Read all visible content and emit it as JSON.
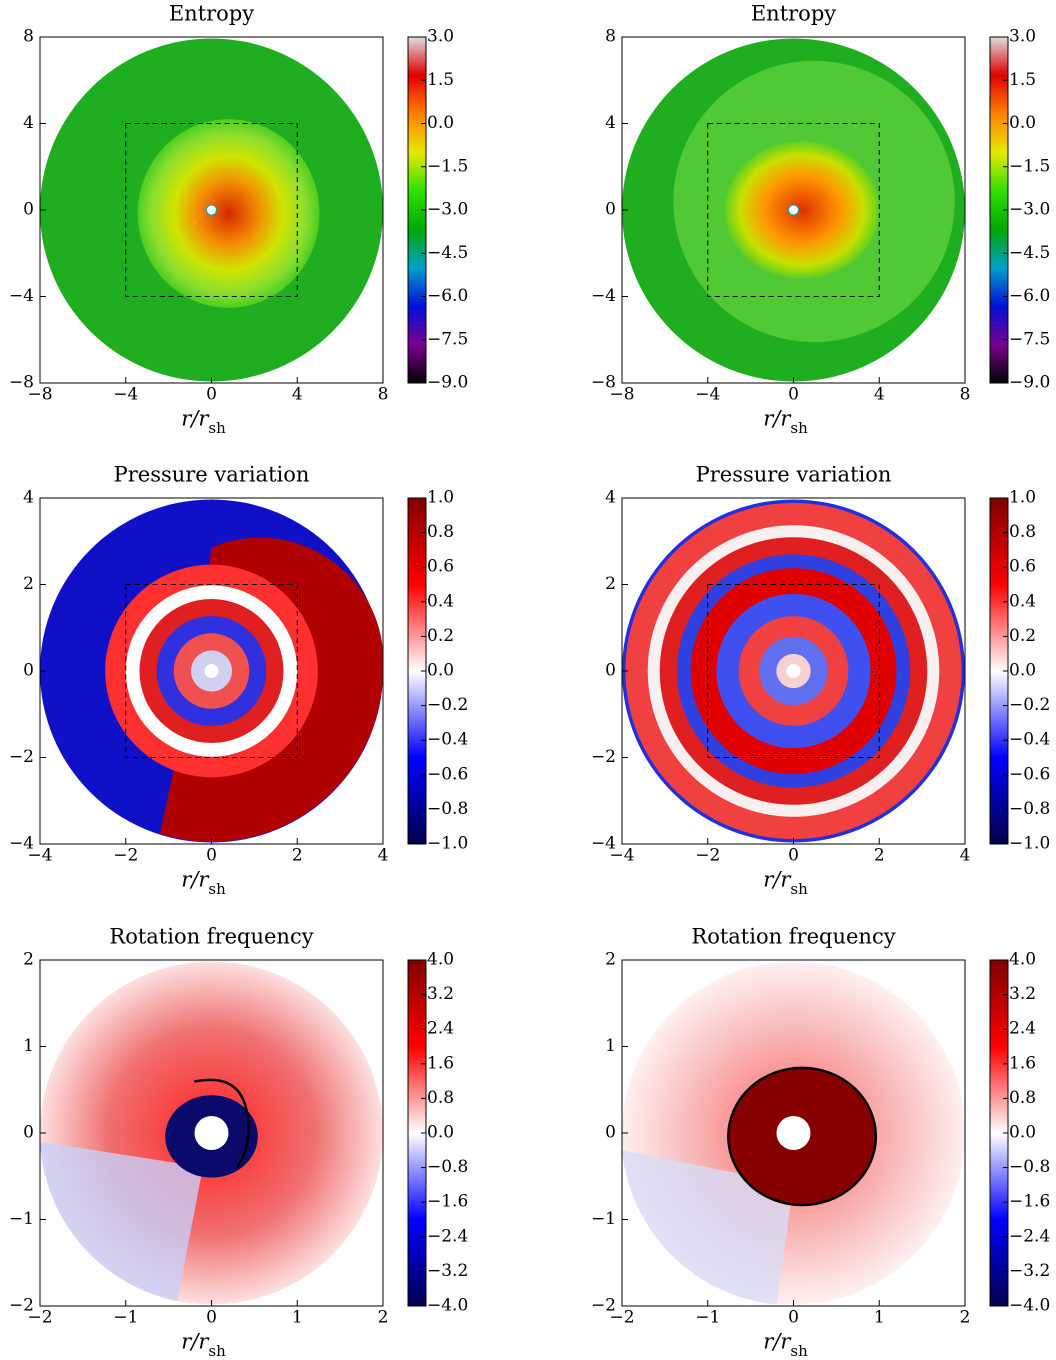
{
  "chart_data": [
    {
      "type": "image",
      "title": "Entropy",
      "xlabel": "r/r",
      "xlabel_subscript": "sh",
      "xlim": [
        -8,
        8
      ],
      "ylim": [
        -8,
        8
      ],
      "xticks": [
        {
          "value": -8,
          "label": "−8"
        },
        {
          "value": -4,
          "label": "−4"
        },
        0,
        4,
        8
      ],
      "yticks": [
        {
          "value": -8,
          "label": "−8"
        },
        {
          "value": -4,
          "label": "−4"
        },
        0,
        4,
        8
      ],
      "clim": [
        -9,
        3
      ],
      "cticks": [
        {
          "value": 3,
          "label": "3.0"
        },
        {
          "value": 1.5,
          "label": "1.5"
        },
        {
          "value": 0,
          "label": "0.0"
        },
        {
          "value": -1.5,
          "label": "−1.5"
        },
        {
          "value": -3,
          "label": "−3.0"
        },
        {
          "value": -4.5,
          "label": "−4.5"
        },
        {
          "value": -6,
          "label": "−6.0"
        },
        {
          "value": -7.5,
          "label": "−7.5"
        },
        {
          "value": -9,
          "label": "−9.0"
        }
      ],
      "colormap": [
        "#000000",
        "#7a0090",
        "#0010d8",
        "#00a0c8",
        "#00a800",
        "#30e000",
        "#e8e800",
        "#ff8000",
        "#e00000",
        "#dddddd"
      ]
    },
    {
      "type": "image",
      "title": "Entropy",
      "xlabel": "r/r",
      "xlabel_subscript": "sh",
      "xlim": [
        -8,
        8
      ],
      "ylim": [
        -8,
        8
      ],
      "xticks": [
        {
          "value": -8,
          "label": "−8"
        },
        {
          "value": -4,
          "label": "−4"
        },
        0,
        4,
        8
      ],
      "yticks": [
        {
          "value": -8,
          "label": "−8"
        },
        {
          "value": -4,
          "label": "−4"
        },
        0,
        4,
        8
      ],
      "clim": [
        -9,
        3
      ],
      "cticks": [
        {
          "value": 3,
          "label": "3.0"
        },
        {
          "value": 1.5,
          "label": "1.5"
        },
        {
          "value": 0,
          "label": "0.0"
        },
        {
          "value": -1.5,
          "label": "−1.5"
        },
        {
          "value": -3,
          "label": "−3.0"
        },
        {
          "value": -4.5,
          "label": "−4.5"
        },
        {
          "value": -6,
          "label": "−6.0"
        },
        {
          "value": -7.5,
          "label": "−7.5"
        },
        {
          "value": -9,
          "label": "−9.0"
        }
      ],
      "colormap": [
        "#000000",
        "#7a0090",
        "#0010d8",
        "#00a0c8",
        "#00a800",
        "#30e000",
        "#e8e800",
        "#ff8000",
        "#e00000",
        "#dddddd"
      ]
    },
    {
      "type": "image",
      "title": "Pressure variation",
      "xlabel": "r/r",
      "xlabel_subscript": "sh",
      "xlim": [
        -4,
        4
      ],
      "ylim": [
        -4,
        4
      ],
      "xticks": [
        {
          "value": -4,
          "label": "−4"
        },
        {
          "value": -2,
          "label": "−2"
        },
        0,
        2,
        4
      ],
      "yticks": [
        {
          "value": -4,
          "label": "−4"
        },
        {
          "value": -2,
          "label": "−2"
        },
        0,
        2,
        4
      ],
      "clim": [
        -1,
        1
      ],
      "cticks": [
        {
          "value": 1,
          "label": "1.0"
        },
        0.8,
        0.6,
        0.4,
        0.2,
        {
          "value": 0,
          "label": "0.0"
        },
        {
          "value": -0.2,
          "label": "−0.2"
        },
        {
          "value": -0.4,
          "label": "−0.4"
        },
        {
          "value": -0.6,
          "label": "−0.6"
        },
        {
          "value": -0.8,
          "label": "−0.8"
        },
        {
          "value": -1,
          "label": "−1.0"
        }
      ],
      "colormap": [
        "#00004c",
        "#0000ff",
        "#ffffff",
        "#ff0000",
        "#800000"
      ]
    },
    {
      "type": "image",
      "title": "Pressure variation",
      "xlabel": "r/r",
      "xlabel_subscript": "sh",
      "xlim": [
        -4,
        4
      ],
      "ylim": [
        -4,
        4
      ],
      "xticks": [
        {
          "value": -4,
          "label": "−4"
        },
        {
          "value": -2,
          "label": "−2"
        },
        0,
        2,
        4
      ],
      "yticks": [
        {
          "value": -4,
          "label": "−4"
        },
        {
          "value": -2,
          "label": "−2"
        },
        0,
        2,
        4
      ],
      "clim": [
        -1,
        1
      ],
      "cticks": [
        {
          "value": 1,
          "label": "1.0"
        },
        0.8,
        0.6,
        0.4,
        0.2,
        {
          "value": 0,
          "label": "0.0"
        },
        {
          "value": -0.2,
          "label": "−0.2"
        },
        {
          "value": -0.4,
          "label": "−0.4"
        },
        {
          "value": -0.6,
          "label": "−0.6"
        },
        {
          "value": -0.8,
          "label": "−0.8"
        },
        {
          "value": -1,
          "label": "−1.0"
        }
      ],
      "colormap": [
        "#00004c",
        "#0000ff",
        "#ffffff",
        "#ff0000",
        "#800000"
      ]
    },
    {
      "type": "image",
      "title": "Rotation frequency",
      "xlabel": "r/r",
      "xlabel_subscript": "sh",
      "xlim": [
        -2,
        2
      ],
      "ylim": [
        -2,
        2
      ],
      "xticks": [
        {
          "value": -2,
          "label": "−2"
        },
        {
          "value": -1,
          "label": "−1"
        },
        0,
        1,
        2
      ],
      "yticks": [
        {
          "value": -2,
          "label": "−2"
        },
        {
          "value": -1,
          "label": "−1"
        },
        0,
        1,
        2
      ],
      "clim": [
        -4,
        4
      ],
      "cticks": [
        {
          "value": 4,
          "label": "4.0"
        },
        3.2,
        2.4,
        1.6,
        0.8,
        {
          "value": 0,
          "label": "0.0"
        },
        {
          "value": -0.8,
          "label": "−0.8"
        },
        {
          "value": -1.6,
          "label": "−1.6"
        },
        {
          "value": -2.4,
          "label": "−2.4"
        },
        {
          "value": -3.2,
          "label": "−3.2"
        },
        {
          "value": -4,
          "label": "−4.0"
        }
      ],
      "colormap": [
        "#00004c",
        "#0000ff",
        "#ffffff",
        "#ff0000",
        "#800000"
      ]
    },
    {
      "type": "image",
      "title": "Rotation frequency",
      "xlabel": "r/r",
      "xlabel_subscript": "sh",
      "xlim": [
        -2,
        2
      ],
      "ylim": [
        -2,
        2
      ],
      "xticks": [
        {
          "value": -2,
          "label": "−2"
        },
        {
          "value": -1,
          "label": "−1"
        },
        0,
        1,
        2
      ],
      "yticks": [
        {
          "value": -2,
          "label": "−2"
        },
        {
          "value": -1,
          "label": "−1"
        },
        0,
        1,
        2
      ],
      "clim": [
        -4,
        4
      ],
      "cticks": [
        {
          "value": 4,
          "label": "4.0"
        },
        3.2,
        2.4,
        1.6,
        0.8,
        {
          "value": 0,
          "label": "0.0"
        },
        {
          "value": -0.8,
          "label": "−0.8"
        },
        {
          "value": -1.6,
          "label": "−1.6"
        },
        {
          "value": -2.4,
          "label": "−2.4"
        },
        {
          "value": -3.2,
          "label": "−3.2"
        },
        {
          "value": -4,
          "label": "−4.0"
        }
      ],
      "colormap": [
        "#00004c",
        "#0000ff",
        "#ffffff",
        "#ff0000",
        "#800000"
      ]
    }
  ]
}
